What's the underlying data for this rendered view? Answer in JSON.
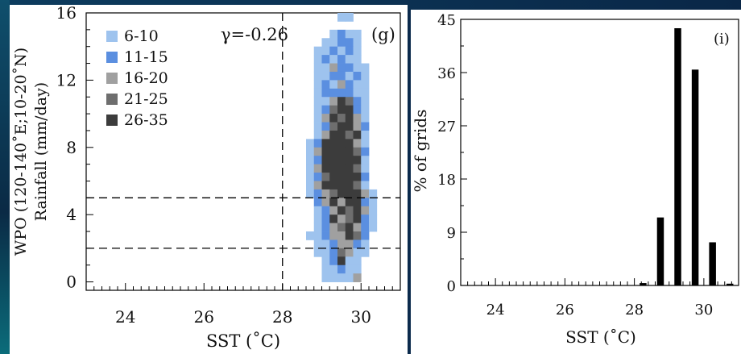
{
  "chart_data": [
    {
      "type": "heatmap",
      "panel_label": "(g)",
      "annotation": "γ=-0.26",
      "xlabel": "SST (˚C)",
      "ylabel_line1": "WPO (120-140˚E;10-20˚N)",
      "ylabel_line2": "Rainfall (mm/day)",
      "xlim": [
        23,
        31
      ],
      "ylim": [
        -0.5,
        16
      ],
      "x_ticks": [
        24,
        26,
        28,
        30
      ],
      "y_ticks": [
        0,
        4,
        8,
        12,
        16
      ],
      "cell_size": {
        "x": 0.2,
        "y": 0.5
      },
      "reference_lines": {
        "x": [
          28
        ],
        "y": [
          5,
          2
        ]
      },
      "legend": [
        {
          "label": "6-10",
          "color": "#9ec3ee"
        },
        {
          "label": "11-15",
          "color": "#5b8fe0"
        },
        {
          "label": "16-20",
          "color": "#a0a0a0"
        },
        {
          "label": "21-25",
          "color": "#6e6e6e"
        },
        {
          "label": "26-35",
          "color": "#3c3c3c"
        }
      ],
      "cells": [
        [
          29.5,
          15.75,
          0
        ],
        [
          29.7,
          15.75,
          0
        ],
        [
          29.3,
          14.75,
          0
        ],
        [
          29.5,
          14.75,
          1
        ],
        [
          29.7,
          14.75,
          0
        ],
        [
          29.9,
          14.75,
          0
        ],
        [
          29.1,
          14.25,
          0
        ],
        [
          29.3,
          14.25,
          0
        ],
        [
          29.5,
          14.25,
          1
        ],
        [
          29.7,
          14.25,
          1
        ],
        [
          29.9,
          14.25,
          0
        ],
        [
          28.9,
          13.75,
          0
        ],
        [
          29.1,
          13.75,
          0
        ],
        [
          29.3,
          13.75,
          1
        ],
        [
          29.5,
          13.75,
          0
        ],
        [
          29.7,
          13.75,
          1
        ],
        [
          29.9,
          13.75,
          0
        ],
        [
          28.9,
          13.25,
          0
        ],
        [
          29.1,
          13.25,
          1
        ],
        [
          29.3,
          13.25,
          0
        ],
        [
          29.5,
          13.25,
          1
        ],
        [
          29.7,
          13.25,
          0
        ],
        [
          29.9,
          13.25,
          0
        ],
        [
          28.9,
          12.75,
          0
        ],
        [
          29.1,
          12.75,
          0
        ],
        [
          29.3,
          12.75,
          2
        ],
        [
          29.5,
          12.75,
          1
        ],
        [
          29.7,
          12.75,
          1
        ],
        [
          29.9,
          12.75,
          0
        ],
        [
          30.1,
          12.75,
          0
        ],
        [
          28.9,
          12.25,
          0
        ],
        [
          29.1,
          12.25,
          0
        ],
        [
          29.3,
          12.25,
          1
        ],
        [
          29.5,
          12.25,
          1
        ],
        [
          29.7,
          12.25,
          0
        ],
        [
          29.9,
          12.25,
          1
        ],
        [
          30.1,
          12.25,
          0
        ],
        [
          28.9,
          11.75,
          0
        ],
        [
          29.1,
          11.75,
          1
        ],
        [
          29.3,
          11.75,
          0
        ],
        [
          29.5,
          11.75,
          2
        ],
        [
          29.7,
          11.75,
          1
        ],
        [
          29.9,
          11.75,
          0
        ],
        [
          30.1,
          11.75,
          0
        ],
        [
          28.9,
          11.25,
          0
        ],
        [
          29.1,
          11.25,
          1
        ],
        [
          29.3,
          11.25,
          1
        ],
        [
          29.5,
          11.25,
          1
        ],
        [
          29.7,
          11.25,
          1
        ],
        [
          29.9,
          11.25,
          0
        ],
        [
          30.1,
          11.25,
          0
        ],
        [
          28.9,
          10.75,
          0
        ],
        [
          29.1,
          10.75,
          0
        ],
        [
          29.3,
          10.75,
          2
        ],
        [
          29.5,
          10.75,
          4
        ],
        [
          29.7,
          10.75,
          3
        ],
        [
          29.9,
          10.75,
          1
        ],
        [
          30.1,
          10.75,
          0
        ],
        [
          28.9,
          10.25,
          0
        ],
        [
          29.1,
          10.25,
          1
        ],
        [
          29.3,
          10.25,
          3
        ],
        [
          29.5,
          10.25,
          4
        ],
        [
          29.7,
          10.25,
          4
        ],
        [
          29.9,
          10.25,
          1
        ],
        [
          30.1,
          10.25,
          0
        ],
        [
          28.9,
          9.75,
          0
        ],
        [
          29.1,
          9.75,
          2
        ],
        [
          29.3,
          9.75,
          4
        ],
        [
          29.5,
          9.75,
          3
        ],
        [
          29.7,
          9.75,
          4
        ],
        [
          29.9,
          9.75,
          2
        ],
        [
          30.1,
          9.75,
          0
        ],
        [
          28.9,
          9.25,
          0
        ],
        [
          29.1,
          9.25,
          1
        ],
        [
          29.3,
          9.25,
          3
        ],
        [
          29.5,
          9.25,
          4
        ],
        [
          29.7,
          9.25,
          4
        ],
        [
          29.9,
          9.25,
          2
        ],
        [
          30.1,
          9.25,
          1
        ],
        [
          28.9,
          8.75,
          0
        ],
        [
          29.1,
          8.75,
          2
        ],
        [
          29.3,
          8.75,
          4
        ],
        [
          29.5,
          8.75,
          4
        ],
        [
          29.7,
          8.75,
          3
        ],
        [
          29.9,
          8.75,
          4
        ],
        [
          30.1,
          8.75,
          0
        ],
        [
          28.7,
          8.25,
          0
        ],
        [
          28.9,
          8.25,
          1
        ],
        [
          29.1,
          8.25,
          4
        ],
        [
          29.3,
          8.25,
          4
        ],
        [
          29.5,
          8.25,
          4
        ],
        [
          29.7,
          8.25,
          4
        ],
        [
          29.9,
          8.25,
          2
        ],
        [
          30.1,
          8.25,
          0
        ],
        [
          28.7,
          7.75,
          0
        ],
        [
          28.9,
          7.75,
          2
        ],
        [
          29.1,
          7.75,
          4
        ],
        [
          29.3,
          7.75,
          4
        ],
        [
          29.5,
          7.75,
          4
        ],
        [
          29.7,
          7.75,
          4
        ],
        [
          29.9,
          7.75,
          3
        ],
        [
          30.1,
          7.75,
          1
        ],
        [
          28.7,
          7.25,
          0
        ],
        [
          28.9,
          7.25,
          1
        ],
        [
          29.1,
          7.25,
          4
        ],
        [
          29.3,
          7.25,
          4
        ],
        [
          29.5,
          7.25,
          4
        ],
        [
          29.7,
          7.25,
          4
        ],
        [
          29.9,
          7.25,
          4
        ],
        [
          30.1,
          7.25,
          0
        ],
        [
          28.7,
          6.75,
          0
        ],
        [
          28.9,
          6.75,
          2
        ],
        [
          29.1,
          6.75,
          4
        ],
        [
          29.3,
          6.75,
          4
        ],
        [
          29.5,
          6.75,
          4
        ],
        [
          29.7,
          6.75,
          4
        ],
        [
          29.9,
          6.75,
          3
        ],
        [
          30.1,
          6.75,
          0
        ],
        [
          28.7,
          6.25,
          0
        ],
        [
          28.9,
          6.25,
          1
        ],
        [
          29.1,
          6.25,
          3
        ],
        [
          29.3,
          6.25,
          4
        ],
        [
          29.5,
          6.25,
          4
        ],
        [
          29.7,
          6.25,
          4
        ],
        [
          29.9,
          6.25,
          4
        ],
        [
          30.1,
          6.25,
          1
        ],
        [
          28.7,
          5.75,
          0
        ],
        [
          28.9,
          5.75,
          2
        ],
        [
          29.1,
          5.75,
          4
        ],
        [
          29.3,
          5.75,
          4
        ],
        [
          29.5,
          5.75,
          4
        ],
        [
          29.7,
          5.75,
          4
        ],
        [
          29.9,
          5.75,
          3
        ],
        [
          30.1,
          5.75,
          0
        ],
        [
          28.7,
          5.25,
          0
        ],
        [
          28.9,
          5.25,
          1
        ],
        [
          29.1,
          5.25,
          2
        ],
        [
          29.3,
          5.25,
          3
        ],
        [
          29.5,
          5.25,
          4
        ],
        [
          29.7,
          5.25,
          4
        ],
        [
          29.9,
          5.25,
          4
        ],
        [
          30.1,
          5.25,
          2
        ],
        [
          30.3,
          5.25,
          0
        ],
        [
          28.9,
          4.75,
          1
        ],
        [
          29.1,
          4.75,
          2
        ],
        [
          29.3,
          4.75,
          4
        ],
        [
          29.5,
          4.75,
          2
        ],
        [
          29.7,
          4.75,
          4
        ],
        [
          29.9,
          4.75,
          4
        ],
        [
          30.1,
          4.75,
          1
        ],
        [
          30.3,
          4.75,
          0
        ],
        [
          28.9,
          4.25,
          0
        ],
        [
          29.1,
          4.25,
          1
        ],
        [
          29.3,
          4.25,
          2
        ],
        [
          29.5,
          4.25,
          4
        ],
        [
          29.7,
          4.25,
          3
        ],
        [
          29.9,
          4.25,
          4
        ],
        [
          30.1,
          4.25,
          2
        ],
        [
          30.3,
          4.25,
          0
        ],
        [
          28.9,
          3.75,
          0
        ],
        [
          29.1,
          3.75,
          1
        ],
        [
          29.3,
          3.75,
          4
        ],
        [
          29.5,
          3.75,
          2
        ],
        [
          29.7,
          3.75,
          3
        ],
        [
          29.9,
          3.75,
          4
        ],
        [
          30.1,
          3.75,
          1
        ],
        [
          30.3,
          3.75,
          0
        ],
        [
          28.9,
          3.25,
          0
        ],
        [
          29.1,
          3.25,
          1
        ],
        [
          29.3,
          3.25,
          2
        ],
        [
          29.5,
          3.25,
          3
        ],
        [
          29.7,
          3.25,
          4
        ],
        [
          29.9,
          3.25,
          2
        ],
        [
          30.1,
          3.25,
          1
        ],
        [
          30.3,
          3.25,
          0
        ],
        [
          28.7,
          2.75,
          0
        ],
        [
          28.9,
          2.75,
          0
        ],
        [
          29.1,
          2.75,
          1
        ],
        [
          29.3,
          2.75,
          2
        ],
        [
          29.5,
          2.75,
          2
        ],
        [
          29.7,
          2.75,
          4
        ],
        [
          29.9,
          2.75,
          3
        ],
        [
          30.1,
          2.75,
          1
        ],
        [
          28.9,
          2.25,
          0
        ],
        [
          29.1,
          2.25,
          0
        ],
        [
          29.3,
          2.25,
          1
        ],
        [
          29.5,
          2.25,
          2
        ],
        [
          29.7,
          2.25,
          2
        ],
        [
          29.9,
          2.25,
          1
        ],
        [
          30.1,
          2.25,
          0
        ],
        [
          28.9,
          1.75,
          0
        ],
        [
          29.1,
          1.75,
          0
        ],
        [
          29.3,
          1.75,
          1
        ],
        [
          29.5,
          1.75,
          3
        ],
        [
          29.7,
          1.75,
          2
        ],
        [
          29.9,
          1.75,
          0
        ],
        [
          30.1,
          1.75,
          0
        ],
        [
          29.1,
          1.25,
          0
        ],
        [
          29.3,
          1.25,
          1
        ],
        [
          29.5,
          1.25,
          4
        ],
        [
          29.7,
          1.25,
          0
        ],
        [
          29.9,
          1.25,
          0
        ],
        [
          29.1,
          0.75,
          0
        ],
        [
          29.3,
          0.75,
          0
        ],
        [
          29.5,
          0.75,
          1
        ],
        [
          29.7,
          0.75,
          0
        ],
        [
          29.9,
          0.75,
          0
        ],
        [
          29.1,
          0.25,
          0
        ],
        [
          29.3,
          0.25,
          0
        ],
        [
          29.5,
          0.25,
          0
        ],
        [
          29.7,
          0.25,
          0
        ],
        [
          29.9,
          0.25,
          2
        ]
      ]
    },
    {
      "type": "bar",
      "panel_label": "(i)",
      "xlabel": "SST (˚C)",
      "ylabel": "% of grids",
      "xlim": [
        23,
        31
      ],
      "ylim": [
        0,
        45
      ],
      "x_ticks": [
        24,
        26,
        28,
        30
      ],
      "y_ticks": [
        0,
        9,
        18,
        27,
        36,
        45
      ],
      "categories": [
        28.25,
        28.75,
        29.25,
        29.75,
        30.25,
        30.75
      ],
      "values": [
        0.4,
        11.5,
        43.5,
        36.5,
        7.3,
        0.3
      ],
      "bar_color": "#000000"
    }
  ]
}
